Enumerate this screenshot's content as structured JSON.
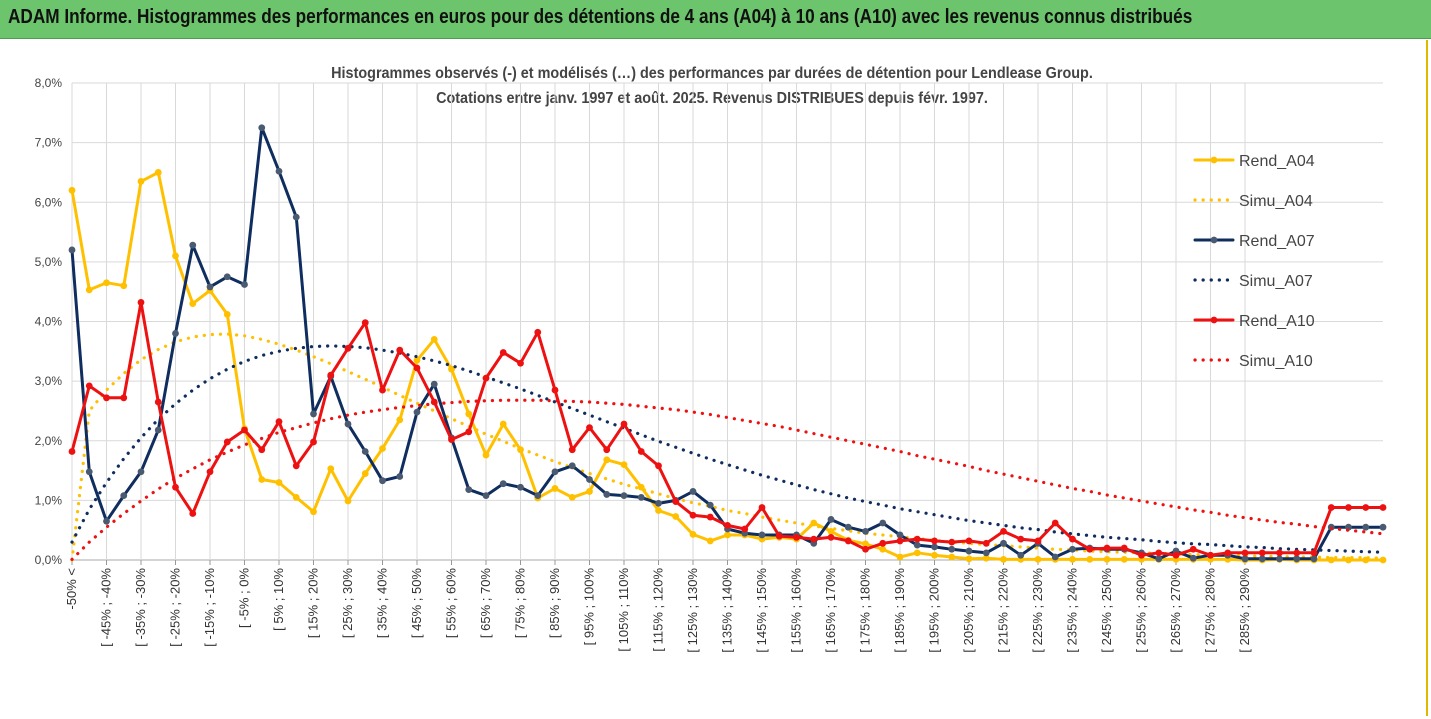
{
  "header": {
    "title": "ADAM Informe. Histogrammes des performances en euros pour des détentions de 4 ans (A04) à 10 ans (A10) avec les revenus connus distribués",
    "background": "#6cc46c"
  },
  "chart_data": {
    "type": "line",
    "title": "Histogrammes observés (-) et modélisés (…) des performances par durées de détention pour Lendlease Group.",
    "subtitle": "Cotations entre janv. 1997 et août. 2025. Revenus DISTRIBUES depuis févr. 1997.",
    "ylim": [
      0,
      0.08
    ],
    "y_ticks": [
      "0,0%",
      "1,0%",
      "2,0%",
      "3,0%",
      "4,0%",
      "5,0%",
      "6,0%",
      "7,0%",
      "8,0%"
    ],
    "grid": true,
    "legend_position": "right",
    "x_tick_labels": [
      "-50% <",
      "[ -45% ; -40%",
      "[ -35% ; -30%",
      "[ -25% ; -20%",
      "[ -15% ; -10%",
      "[ -5% ; 0%",
      "[ 5% ; 10%",
      "[ 15% ; 20%",
      "[ 25% ; 30%",
      "[ 35% ; 40%",
      "[ 45% ; 50%",
      "[ 55% ; 60%",
      "[ 65% ; 70%",
      "[ 75% ; 80%",
      "[ 85% ; 90%",
      "[ 95% ; 100%",
      "[ 105% ; 110%",
      "[ 115% ; 120%",
      "[ 125% ; 130%",
      "[ 135% ; 140%",
      "[ 145% ; 150%",
      "[ 155% ; 160%",
      "[ 165% ; 170%",
      "[ 175% ; 180%",
      "[ 185% ; 190%",
      "[ 195% ; 200%",
      "[ 205% ; 210%",
      "[ 215% ; 220%",
      "[ 225% ; 230%",
      "[ 235% ; 240%",
      "[ 245% ; 250%",
      "[ 255% ; 260%",
      "[ 265% ; 270%",
      "[ 275% ; 280%",
      "[ 285% ; 290%"
    ],
    "series": [
      {
        "name": "Rend_A04",
        "style": "solid",
        "color": "#ffc000",
        "markers": true,
        "values": [
          0.062,
          0.0453,
          0.0465,
          0.046,
          0.0635,
          0.065,
          0.051,
          0.043,
          0.0452,
          0.0412,
          0.022,
          0.0135,
          0.013,
          0.0105,
          0.0081,
          0.0153,
          0.0099,
          0.0145,
          0.0187,
          0.0235,
          0.0335,
          0.037,
          0.032,
          0.0245,
          0.0176,
          0.0228,
          0.0185,
          0.0104,
          0.012,
          0.0105,
          0.0115,
          0.0168,
          0.016,
          0.0122,
          0.0083,
          0.0073,
          0.0043,
          0.0032,
          0.0042,
          0.0042,
          0.0035,
          0.0038,
          0.0035,
          0.0062,
          0.0048,
          0.0033,
          0.0027,
          0.0018,
          0.0005,
          0.0012,
          0.0008,
          0.0005,
          0.0002,
          0.0003,
          0.0001,
          0.0001,
          0.0001,
          0.0001,
          0.0001,
          0.0001,
          0.0001,
          0.0001,
          0.0001,
          0.0001,
          0.0001,
          0.0001,
          0.0001,
          0.0001,
          0,
          0,
          0.0001,
          0,
          0,
          0,
          0,
          0,
          0
        ]
      },
      {
        "name": "Simu_A04",
        "style": "dotted",
        "color": "#ffc000",
        "markers": false,
        "values": [
          0.0,
          0.025,
          0.0285,
          0.0313,
          0.0336,
          0.0353,
          0.0366,
          0.0374,
          0.0378,
          0.0379,
          0.0376,
          0.037,
          0.0362,
          0.0352,
          0.0341,
          0.0329,
          0.0316,
          0.0303,
          0.029,
          0.0276,
          0.0263,
          0.025,
          0.0237,
          0.0224,
          0.0211,
          0.0199,
          0.0187,
          0.0176,
          0.0165,
          0.0155,
          0.0145,
          0.0136,
          0.0127,
          0.0119,
          0.0111,
          0.0103,
          0.0096,
          0.009,
          0.0083,
          0.0078,
          0.0072,
          0.0067,
          0.0062,
          0.0057,
          0.0053,
          0.0049,
          0.0045,
          0.0042,
          0.0039,
          0.0036,
          0.0033,
          0.003,
          0.0028,
          0.0026,
          0.0024,
          0.0022,
          0.002,
          0.0018,
          0.0017,
          0.0015,
          0.0014,
          0.0013,
          0.0012,
          0.0011,
          0.001,
          0.0009,
          0.0008,
          0.0008,
          0.0007,
          0.0006,
          0.0006,
          0.0005,
          0.0005,
          0.0004,
          0.0004,
          0.0004,
          0.0003
        ]
      },
      {
        "name": "Rend_A07",
        "style": "solid",
        "color": "#0f2d5e",
        "markers": true,
        "values": [
          0.052,
          0.0148,
          0.0065,
          0.0108,
          0.0148,
          0.0218,
          0.038,
          0.0528,
          0.0458,
          0.0475,
          0.0462,
          0.0725,
          0.0652,
          0.0575,
          0.0245,
          0.0308,
          0.0228,
          0.0182,
          0.0133,
          0.014,
          0.0248,
          0.0295,
          0.0205,
          0.0118,
          0.0108,
          0.0128,
          0.0122,
          0.0108,
          0.0148,
          0.0158,
          0.0135,
          0.011,
          0.0108,
          0.0105,
          0.0095,
          0.01,
          0.0115,
          0.0092,
          0.0052,
          0.0045,
          0.0042,
          0.0042,
          0.0042,
          0.0028,
          0.0068,
          0.0055,
          0.0048,
          0.0062,
          0.0042,
          0.0025,
          0.0022,
          0.0018,
          0.0015,
          0.0012,
          0.0028,
          0.0008,
          0.0028,
          0.0005,
          0.0018,
          0.002,
          0.0018,
          0.0018,
          0.0012,
          0.0002,
          0.0015,
          0.0003,
          0.0008,
          0.0008,
          0.0002,
          0.0002,
          0.0002,
          0.0002,
          0.0002,
          0.0055,
          0.0055,
          0.0055,
          0.0055
        ]
      },
      {
        "name": "Simu_A07",
        "style": "dotted",
        "color": "#0f2d5e",
        "markers": false,
        "values": [
          0.003,
          0.0085,
          0.013,
          0.017,
          0.0205,
          0.0236,
          0.0262,
          0.0285,
          0.0304,
          0.032,
          0.0333,
          0.0343,
          0.035,
          0.0355,
          0.0358,
          0.0359,
          0.0358,
          0.0356,
          0.0352,
          0.0347,
          0.0341,
          0.0334,
          0.0326,
          0.0317,
          0.0307,
          0.0297,
          0.0287,
          0.0276,
          0.0265,
          0.0254,
          0.0243,
          0.0232,
          0.0221,
          0.021,
          0.0199,
          0.0189,
          0.0179,
          0.0169,
          0.016,
          0.0151,
          0.0142,
          0.0134,
          0.0126,
          0.0118,
          0.0111,
          0.0104,
          0.0098,
          0.0092,
          0.0086,
          0.0081,
          0.0076,
          0.0071,
          0.0066,
          0.0062,
          0.0058,
          0.0054,
          0.0051,
          0.0047,
          0.0044,
          0.0041,
          0.0038,
          0.0036,
          0.0034,
          0.0031,
          0.0029,
          0.0027,
          0.0026,
          0.0024,
          0.0022,
          0.0021,
          0.0019,
          0.0018,
          0.0017,
          0.0016,
          0.0015,
          0.0014,
          0.0013
        ]
      },
      {
        "name": "Rend_A10",
        "style": "solid",
        "color": "#ee1111",
        "markers": true,
        "values": [
          0.0182,
          0.0292,
          0.0272,
          0.0272,
          0.0432,
          0.0265,
          0.0122,
          0.0078,
          0.0148,
          0.0198,
          0.0218,
          0.0185,
          0.0232,
          0.0158,
          0.0198,
          0.031,
          0.0355,
          0.0398,
          0.0285,
          0.0352,
          0.0322,
          0.0265,
          0.0202,
          0.0215,
          0.0305,
          0.0348,
          0.033,
          0.0382,
          0.0285,
          0.0185,
          0.0222,
          0.0185,
          0.0228,
          0.0182,
          0.0158,
          0.0098,
          0.0075,
          0.0072,
          0.0058,
          0.0052,
          0.0088,
          0.004,
          0.0038,
          0.0035,
          0.0038,
          0.0032,
          0.0018,
          0.0028,
          0.0032,
          0.0035,
          0.0032,
          0.003,
          0.0032,
          0.0028,
          0.0048,
          0.0035,
          0.0032,
          0.0062,
          0.0035,
          0.0018,
          0.002,
          0.002,
          0.0008,
          0.0012,
          0.0008,
          0.0018,
          0.0008,
          0.0012,
          0.0012,
          0.0012,
          0.0012,
          0.0012,
          0.0012,
          0.0088,
          0.0088,
          0.0088,
          0.0088
        ]
      },
      {
        "name": "Simu_A10",
        "style": "dotted",
        "color": "#ee1111",
        "markers": false,
        "values": [
          0.0001,
          0.003,
          0.0055,
          0.0078,
          0.0099,
          0.0119,
          0.0137,
          0.0153,
          0.0168,
          0.0181,
          0.0193,
          0.0204,
          0.0214,
          0.0222,
          0.023,
          0.0237,
          0.0243,
          0.0248,
          0.0252,
          0.0256,
          0.0259,
          0.0262,
          0.0264,
          0.0266,
          0.0267,
          0.0268,
          0.0268,
          0.0268,
          0.0267,
          0.0266,
          0.0265,
          0.0263,
          0.0261,
          0.0258,
          0.0255,
          0.0252,
          0.0248,
          0.0244,
          0.0239,
          0.0234,
          0.0229,
          0.0224,
          0.0218,
          0.0212,
          0.0206,
          0.02,
          0.0194,
          0.0188,
          0.0182,
          0.0175,
          0.0169,
          0.0163,
          0.0157,
          0.015,
          0.0144,
          0.0138,
          0.0132,
          0.0126,
          0.012,
          0.0115,
          0.0109,
          0.0104,
          0.0099,
          0.0094,
          0.0089,
          0.0084,
          0.008,
          0.0075,
          0.0071,
          0.0067,
          0.0063,
          0.006,
          0.0056,
          0.0053,
          0.005,
          0.0047,
          0.0044
        ]
      }
    ]
  }
}
